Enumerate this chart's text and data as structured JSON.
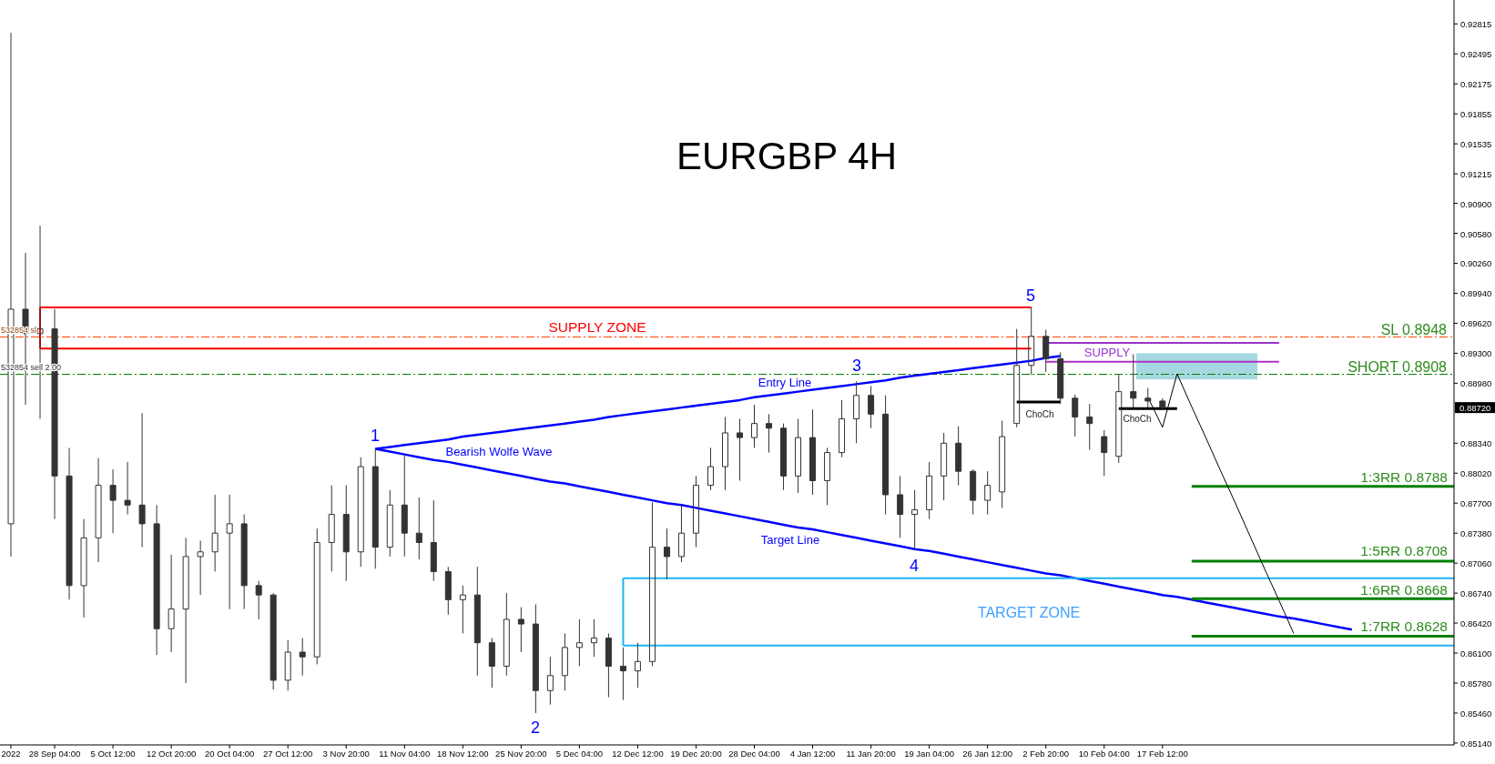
{
  "chart_data": {
    "type": "candlestick",
    "title": "EURGBP 4H",
    "color": "#333333",
    "categories": [
      "2022",
      null,
      null,
      "28 Sep 04:00",
      null,
      null,
      null,
      "5 Oct 12:00",
      null,
      null,
      null,
      "12 Oct 20:00",
      null,
      null,
      null,
      "20 Oct 04:00",
      null,
      null,
      null,
      "27 Oct 12:00",
      null,
      null,
      null,
      "3 Nov 20:00",
      null,
      null,
      null,
      "11 Nov 04:00",
      null,
      null,
      null,
      "18 Nov 12:00",
      null,
      null,
      null,
      "25 Nov 20:00",
      null,
      null,
      null,
      "5 Dec 04:00",
      null,
      null,
      null,
      "12 Dec 12:00",
      null,
      null,
      null,
      "19 Dec 20:00",
      null,
      null,
      null,
      "28 Dec 04:00",
      null,
      null,
      null,
      "4 Jan 12:00",
      null,
      null,
      null,
      "11 Jan 20:00",
      null,
      null,
      null,
      "19 Jan 04:00",
      null,
      null,
      null,
      "26 Jan 12:00",
      null,
      null,
      null,
      "2 Feb 20:00",
      null,
      null,
      null,
      "10 Feb 04:00",
      null,
      null,
      null,
      "17 Feb 12:00",
      null,
      null,
      null,
      null,
      null,
      null,
      null,
      null,
      null,
      null,
      null,
      null,
      null,
      null,
      null,
      null,
      null,
      null,
      null,
      null
    ],
    "ohlc": [
      [
        0.8748,
        0.9272,
        0.8713,
        0.8977
      ],
      [
        0.8977,
        0.9037,
        0.8875,
        0.8951
      ],
      [
        0.8951,
        0.9066,
        0.886,
        0.8956
      ],
      [
        0.8956,
        0.8977,
        0.8753,
        0.8799
      ],
      [
        0.8799,
        0.8829,
        0.8667,
        0.8682
      ],
      [
        0.8682,
        0.8753,
        0.8648,
        0.8733
      ],
      [
        0.8733,
        0.8818,
        0.8707,
        0.8789
      ],
      [
        0.8789,
        0.8806,
        0.8738,
        0.8773
      ],
      [
        0.8773,
        0.8814,
        0.8758,
        0.8768
      ],
      [
        0.8768,
        0.8866,
        0.8723,
        0.8748
      ],
      [
        0.8748,
        0.8768,
        0.8608,
        0.8636
      ],
      [
        0.8636,
        0.8715,
        0.8611,
        0.8657
      ],
      [
        0.8657,
        0.8733,
        0.8578,
        0.8713
      ],
      [
        0.8713,
        0.873,
        0.8672,
        0.8718
      ],
      [
        0.8718,
        0.8779,
        0.8697,
        0.8738
      ],
      [
        0.8738,
        0.8779,
        0.8657,
        0.8748
      ],
      [
        0.8748,
        0.8758,
        0.8657,
        0.8682
      ],
      [
        0.8682,
        0.8687,
        0.8646,
        0.8672
      ],
      [
        0.8672,
        0.8674,
        0.8571,
        0.8581
      ],
      [
        0.8581,
        0.8624,
        0.857,
        0.8611
      ],
      [
        0.8611,
        0.8626,
        0.8586,
        0.8606
      ],
      [
        0.8606,
        0.8743,
        0.8598,
        0.8728
      ],
      [
        0.8728,
        0.8789,
        0.8697,
        0.8758
      ],
      [
        0.8758,
        0.8789,
        0.8687,
        0.8718
      ],
      [
        0.8718,
        0.8819,
        0.8702,
        0.8809
      ],
      [
        0.8809,
        0.8828,
        0.87,
        0.8723
      ],
      [
        0.8723,
        0.8784,
        0.8713,
        0.8768
      ],
      [
        0.8768,
        0.8822,
        0.8713,
        0.8738
      ],
      [
        0.8738,
        0.8776,
        0.871,
        0.8728
      ],
      [
        0.8728,
        0.8773,
        0.8687,
        0.8697
      ],
      [
        0.8697,
        0.8702,
        0.8651,
        0.8667
      ],
      [
        0.8667,
        0.8682,
        0.8631,
        0.8672
      ],
      [
        0.8672,
        0.8702,
        0.8586,
        0.8621
      ],
      [
        0.8621,
        0.8626,
        0.8573,
        0.8596
      ],
      [
        0.8596,
        0.8674,
        0.8586,
        0.8646
      ],
      [
        0.8646,
        0.8659,
        0.8611,
        0.8641
      ],
      [
        0.8641,
        0.8662,
        0.8546,
        0.857
      ],
      [
        0.857,
        0.8606,
        0.8555,
        0.8586
      ],
      [
        0.8586,
        0.8631,
        0.857,
        0.8616
      ],
      [
        0.8616,
        0.8646,
        0.8596,
        0.8621
      ],
      [
        0.8621,
        0.8646,
        0.8606,
        0.8626
      ],
      [
        0.8626,
        0.8631,
        0.8563,
        0.8596
      ],
      [
        0.8596,
        0.8616,
        0.856,
        0.8591
      ],
      [
        0.8591,
        0.8621,
        0.8573,
        0.8601
      ],
      [
        0.8601,
        0.8771,
        0.8596,
        0.8723
      ],
      [
        0.8723,
        0.8743,
        0.8689,
        0.8713
      ],
      [
        0.8713,
        0.8768,
        0.8707,
        0.8738
      ],
      [
        0.8738,
        0.8799,
        0.8723,
        0.8789
      ],
      [
        0.8789,
        0.8829,
        0.8784,
        0.8809
      ],
      [
        0.8809,
        0.8862,
        0.8784,
        0.8845
      ],
      [
        0.8845,
        0.886,
        0.8794,
        0.884
      ],
      [
        0.884,
        0.8875,
        0.8829,
        0.8855
      ],
      [
        0.8855,
        0.8865,
        0.8824,
        0.885
      ],
      [
        0.885,
        0.8855,
        0.8784,
        0.8799
      ],
      [
        0.8799,
        0.886,
        0.8781,
        0.884
      ],
      [
        0.884,
        0.887,
        0.8779,
        0.8794
      ],
      [
        0.8794,
        0.8829,
        0.8768,
        0.8824
      ],
      [
        0.8824,
        0.888,
        0.8819,
        0.886
      ],
      [
        0.886,
        0.89,
        0.8834,
        0.8885
      ],
      [
        0.8885,
        0.8895,
        0.885,
        0.8865
      ],
      [
        0.8865,
        0.8885,
        0.8758,
        0.8779
      ],
      [
        0.8779,
        0.8799,
        0.8733,
        0.8758
      ],
      [
        0.8758,
        0.8784,
        0.872,
        0.8763
      ],
      [
        0.8763,
        0.8814,
        0.8753,
        0.8799
      ],
      [
        0.8799,
        0.8845,
        0.8773,
        0.8834
      ],
      [
        0.8834,
        0.8852,
        0.8789,
        0.8804
      ],
      [
        0.8804,
        0.8806,
        0.8758,
        0.8773
      ],
      [
        0.8773,
        0.8804,
        0.8758,
        0.8789
      ],
      [
        0.8782,
        0.8858,
        0.8765,
        0.8841
      ],
      [
        0.8855,
        0.8956,
        0.8851,
        0.8917
      ],
      [
        0.8917,
        0.8979,
        0.8907,
        0.8948
      ],
      [
        0.8948,
        0.8955,
        0.891,
        0.8924
      ],
      [
        0.8924,
        0.8931,
        0.8876,
        0.8882
      ],
      [
        0.8882,
        0.8886,
        0.8841,
        0.8862
      ],
      [
        0.8862,
        0.8876,
        0.8827,
        0.8855
      ],
      [
        0.8841,
        0.8848,
        0.8799,
        0.8824
      ],
      [
        0.882,
        0.8907,
        0.8813,
        0.8889
      ],
      [
        0.8889,
        0.8929,
        0.8872,
        0.8882
      ],
      [
        0.8882,
        0.8893,
        0.8872,
        0.8879
      ],
      [
        0.8879,
        0.8882,
        0.8869,
        0.8872
      ],
      null,
      null,
      null,
      null,
      null,
      null,
      null,
      null,
      null,
      null,
      null,
      null,
      null,
      null,
      null,
      null,
      null,
      null,
      null,
      null
    ],
    "series": [
      {
        "type": "line",
        "color": "#0000ff",
        "values": [
          null,
          null,
          null,
          null,
          null,
          null,
          null,
          null,
          null,
          null,
          null,
          null,
          null,
          null,
          null,
          null,
          null,
          null,
          null,
          null,
          null,
          null,
          null,
          null,
          null,
          0.8828,
          0.883,
          0.8832,
          0.8834,
          0.8836,
          0.8838,
          0.8841,
          0.8843,
          0.8845,
          0.8847,
          0.8849,
          0.8851,
          0.8853,
          0.8855,
          0.8857,
          0.8859,
          0.8862,
          0.8864,
          0.8866,
          0.8868,
          0.887,
          0.8872,
          0.8874,
          0.8876,
          0.8878,
          0.888,
          0.8883,
          0.8885,
          0.8887,
          0.8889,
          0.8891,
          0.8893,
          0.8895,
          0.8897,
          0.8899,
          0.8901,
          0.8904,
          0.8906,
          0.8908,
          0.891,
          0.8912,
          0.8914,
          0.8916,
          0.8918,
          0.892,
          0.8922,
          0.8925,
          0.8927,
          null,
          null,
          null,
          null,
          null,
          null,
          null,
          null,
          null,
          null,
          null,
          null,
          null,
          null,
          null,
          null,
          null,
          null,
          null,
          null,
          null,
          null,
          null,
          null,
          null,
          null,
          null
        ]
      },
      {
        "type": "line",
        "color": "#0000ff",
        "values": [
          null,
          null,
          null,
          null,
          null,
          null,
          null,
          null,
          null,
          null,
          null,
          null,
          null,
          null,
          null,
          null,
          null,
          null,
          null,
          null,
          null,
          null,
          null,
          null,
          null,
          0.8828,
          0.8825,
          0.8822,
          0.8819,
          0.8816,
          0.8814,
          0.8811,
          0.8808,
          0.8805,
          0.8802,
          0.8799,
          0.8796,
          0.8793,
          0.8791,
          0.8788,
          0.8785,
          0.8782,
          0.8779,
          0.8776,
          0.8773,
          0.877,
          0.8768,
          0.8765,
          0.8762,
          0.8759,
          0.8756,
          0.8753,
          0.875,
          0.8747,
          0.8744,
          0.8742,
          0.8739,
          0.8736,
          0.8733,
          0.873,
          0.8727,
          0.8724,
          0.8721,
          0.8719,
          0.8716,
          0.8713,
          0.871,
          0.8707,
          0.8704,
          0.8701,
          0.8698,
          0.8695,
          0.8693,
          0.869,
          0.8687,
          0.8684,
          0.8681,
          0.8678,
          0.8675,
          0.8672,
          0.867,
          0.8667,
          0.8664,
          0.8661,
          0.8658,
          0.8655,
          0.8652,
          0.8649,
          0.8647,
          0.8644,
          0.8641,
          0.8638,
          0.8635,
          null,
          null,
          null,
          null,
          null,
          null,
          null
        ]
      },
      {
        "type": "line",
        "color": "#ff0000",
        "values": [
          null,
          null,
          0.8979,
          0.8979,
          0.8979,
          0.8979,
          0.8979,
          0.8979,
          0.8979,
          0.8979,
          0.8979,
          0.8979,
          0.8979,
          0.8979,
          0.8979,
          0.8979,
          0.8979,
          0.8979,
          0.8979,
          0.8979,
          0.8979,
          0.8979,
          0.8979,
          0.8979,
          0.8979,
          0.8979,
          0.8979,
          0.8979,
          0.8979,
          0.8979,
          0.8979,
          0.8979,
          0.8979,
          0.8979,
          0.8979,
          0.8979,
          0.8979,
          0.8979,
          0.8979,
          0.8979,
          0.8979,
          0.8979,
          0.8979,
          0.8979,
          0.8979,
          0.8979,
          0.8979,
          0.8979,
          0.8979,
          0.8979,
          0.8979,
          0.8979,
          0.8979,
          0.8979,
          0.8979,
          0.8979,
          0.8979,
          0.8979,
          0.8979,
          0.8979,
          0.8979,
          0.8979,
          0.8979,
          0.8979,
          0.8979,
          0.8979,
          0.8979,
          0.8979,
          0.8979,
          0.8979,
          0.8979,
          null,
          null,
          null,
          null,
          null,
          null,
          null,
          null,
          null,
          null,
          null,
          null,
          null,
          null,
          null,
          null,
          null,
          null,
          null,
          null,
          null,
          null,
          null,
          null,
          null,
          null,
          null,
          null,
          null
        ]
      },
      {
        "type": "line",
        "color": "#ff0000",
        "values": [
          null,
          null,
          0.8935,
          0.8935,
          0.8935,
          0.8935,
          0.8935,
          0.8935,
          0.8935,
          0.8935,
          0.8935,
          0.8935,
          0.8935,
          0.8935,
          0.8935,
          0.8935,
          0.8935,
          0.8935,
          0.8935,
          0.8935,
          0.8935,
          0.8935,
          0.8935,
          0.8935,
          0.8935,
          0.8935,
          0.8935,
          0.8935,
          0.8935,
          0.8935,
          0.8935,
          0.8935,
          0.8935,
          0.8935,
          0.8935,
          0.8935,
          0.8935,
          0.8935,
          0.8935,
          0.8935,
          0.8935,
          0.8935,
          0.8935,
          0.8935,
          0.8935,
          0.8935,
          0.8935,
          0.8935,
          0.8935,
          0.8935,
          0.8935,
          0.8935,
          0.8935,
          0.8935,
          0.8935,
          0.8935,
          0.8935,
          0.8935,
          0.8935,
          0.8935,
          0.8935,
          0.8935,
          0.8935,
          0.8935,
          0.8935,
          0.8935,
          0.8935,
          0.8935,
          0.8935,
          0.8935,
          0.8935,
          null,
          null,
          null,
          null,
          null,
          null,
          null,
          null,
          null,
          null,
          null,
          null,
          null,
          null,
          null,
          null,
          null,
          null,
          null,
          null,
          null,
          null,
          null,
          null,
          null,
          null,
          null,
          null,
          null
        ]
      },
      {
        "type": "line",
        "color": "#1eb4f0",
        "values": [
          null,
          null,
          null,
          null,
          null,
          null,
          null,
          null,
          null,
          null,
          null,
          null,
          null,
          null,
          null,
          null,
          null,
          null,
          null,
          null,
          null,
          null,
          null,
          null,
          null,
          null,
          null,
          null,
          null,
          null,
          null,
          null,
          null,
          null,
          null,
          null,
          null,
          null,
          null,
          null,
          null,
          null,
          0.869,
          0.869,
          0.869,
          0.869,
          0.869,
          0.869,
          0.869,
          0.869,
          0.869,
          0.869,
          0.869,
          0.869,
          0.869,
          0.869,
          0.869,
          0.869,
          0.869,
          0.869,
          0.869,
          0.869,
          0.869,
          0.869,
          0.869,
          0.869,
          0.869,
          0.869,
          0.869,
          0.869,
          0.869,
          0.869,
          0.869,
          0.869,
          0.869,
          0.869,
          0.869,
          0.869,
          0.869,
          0.869,
          0.869,
          0.869,
          0.869,
          0.869,
          0.869,
          0.869,
          0.869,
          0.869,
          0.869,
          0.869,
          0.869,
          0.869,
          0.869,
          0.869,
          0.869,
          0.869,
          0.869,
          0.869,
          0.869,
          0.869
        ]
      },
      {
        "type": "line",
        "color": "#1eb4f0",
        "values": [
          null,
          null,
          null,
          null,
          null,
          null,
          null,
          null,
          null,
          null,
          null,
          null,
          null,
          null,
          null,
          null,
          null,
          null,
          null,
          null,
          null,
          null,
          null,
          null,
          null,
          null,
          null,
          null,
          null,
          null,
          null,
          null,
          null,
          null,
          null,
          null,
          null,
          null,
          null,
          null,
          null,
          null,
          0.8618,
          0.8618,
          0.8618,
          0.8618,
          0.8618,
          0.8618,
          0.8618,
          0.8618,
          0.8618,
          0.8618,
          0.8618,
          0.8618,
          0.8618,
          0.8618,
          0.8618,
          0.8618,
          0.8618,
          0.8618,
          0.8618,
          0.8618,
          0.8618,
          0.8618,
          0.8618,
          0.8618,
          0.8618,
          0.8618,
          0.8618,
          0.8618,
          0.8618,
          0.8618,
          0.8618,
          0.8618,
          0.8618,
          0.8618,
          0.8618,
          0.8618,
          0.8618,
          0.8618,
          0.8618,
          0.8618,
          0.8618,
          0.8618,
          0.8618,
          0.8618,
          0.8618,
          0.8618,
          0.8618,
          0.8618,
          0.8618,
          0.8618,
          0.8618,
          0.8618,
          0.8618,
          0.8618,
          0.8618,
          0.8618,
          0.8618,
          0.8618
        ]
      },
      {
        "type": "line",
        "color": "#9933cc",
        "values": [
          null,
          null,
          null,
          null,
          null,
          null,
          null,
          null,
          null,
          null,
          null,
          null,
          null,
          null,
          null,
          null,
          null,
          null,
          null,
          null,
          null,
          null,
          null,
          null,
          null,
          null,
          null,
          null,
          null,
          null,
          null,
          null,
          null,
          null,
          null,
          null,
          null,
          null,
          null,
          null,
          null,
          null,
          null,
          null,
          null,
          null,
          null,
          null,
          null,
          null,
          null,
          null,
          null,
          null,
          null,
          null,
          null,
          null,
          null,
          null,
          null,
          null,
          null,
          null,
          null,
          null,
          null,
          null,
          null,
          null,
          null,
          0.8941,
          0.8941,
          0.8941,
          0.8941,
          0.8941,
          0.8941,
          0.8941,
          0.8941,
          0.8941,
          0.8941,
          0.8941,
          0.8941,
          0.8941,
          0.8941,
          0.8941,
          0.8941,
          0.8941,
          null,
          null,
          null,
          null,
          null,
          null,
          null,
          null,
          null,
          null,
          null,
          null
        ]
      },
      {
        "type": "line",
        "color": "#b030c8",
        "values": [
          null,
          null,
          null,
          null,
          null,
          null,
          null,
          null,
          null,
          null,
          null,
          null,
          null,
          null,
          null,
          null,
          null,
          null,
          null,
          null,
          null,
          null,
          null,
          null,
          null,
          null,
          null,
          null,
          null,
          null,
          null,
          null,
          null,
          null,
          null,
          null,
          null,
          null,
          null,
          null,
          null,
          null,
          null,
          null,
          null,
          null,
          null,
          null,
          null,
          null,
          null,
          null,
          null,
          null,
          null,
          null,
          null,
          null,
          null,
          null,
          null,
          null,
          null,
          null,
          null,
          null,
          null,
          null,
          null,
          null,
          null,
          0.8921,
          0.8921,
          0.8921,
          0.8921,
          0.8921,
          0.8921,
          0.8921,
          0.8921,
          0.8921,
          0.8921,
          0.8921,
          0.8921,
          0.8921,
          0.8921,
          0.8921,
          0.8921,
          0.8921,
          null,
          null,
          null,
          null,
          null,
          null,
          null,
          null,
          null,
          null,
          null,
          null
        ]
      },
      {
        "type": "line",
        "color": "#000000",
        "values": [
          null,
          null,
          null,
          null,
          null,
          null,
          null,
          null,
          null,
          null,
          null,
          null,
          null,
          null,
          null,
          null,
          null,
          null,
          null,
          null,
          null,
          null,
          null,
          null,
          null,
          null,
          null,
          null,
          null,
          null,
          null,
          null,
          null,
          null,
          null,
          null,
          null,
          null,
          null,
          null,
          null,
          null,
          null,
          null,
          null,
          null,
          null,
          null,
          null,
          null,
          null,
          null,
          null,
          null,
          null,
          null,
          null,
          null,
          null,
          null,
          null,
          null,
          null,
          null,
          null,
          null,
          null,
          null,
          null,
          0.8878,
          0.8878,
          0.8878,
          0.8878,
          null,
          null,
          null,
          null,
          null,
          null,
          null,
          null,
          null,
          null,
          null,
          null,
          null,
          null,
          null,
          null,
          null,
          null,
          null,
          null,
          null,
          null,
          null,
          null,
          null,
          null,
          null
        ]
      },
      {
        "type": "line",
        "color": "#000000",
        "values": [
          null,
          null,
          null,
          null,
          null,
          null,
          null,
          null,
          null,
          null,
          null,
          null,
          null,
          null,
          null,
          null,
          null,
          null,
          null,
          null,
          null,
          null,
          null,
          null,
          null,
          null,
          null,
          null,
          null,
          null,
          null,
          null,
          null,
          null,
          null,
          null,
          null,
          null,
          null,
          null,
          null,
          null,
          null,
          null,
          null,
          null,
          null,
          null,
          null,
          null,
          null,
          null,
          null,
          null,
          null,
          null,
          null,
          null,
          null,
          null,
          null,
          null,
          null,
          null,
          null,
          null,
          null,
          null,
          null,
          null,
          null,
          null,
          null,
          null,
          null,
          null,
          0.8871,
          0.8871,
          0.8871,
          0.8871,
          0.8871,
          null,
          null,
          null,
          null,
          null,
          null,
          null,
          null,
          null,
          null,
          null,
          null,
          null,
          null,
          null,
          null,
          null,
          null,
          null
        ]
      },
      {
        "type": "line",
        "color": "#008000",
        "values": [
          null,
          null,
          null,
          null,
          null,
          null,
          null,
          null,
          null,
          null,
          null,
          null,
          null,
          null,
          null,
          null,
          null,
          null,
          null,
          null,
          null,
          null,
          null,
          null,
          null,
          null,
          null,
          null,
          null,
          null,
          null,
          null,
          null,
          null,
          null,
          null,
          null,
          null,
          null,
          null,
          null,
          null,
          null,
          null,
          null,
          null,
          null,
          null,
          null,
          null,
          null,
          null,
          null,
          null,
          null,
          null,
          null,
          null,
          null,
          null,
          null,
          null,
          null,
          null,
          null,
          null,
          null,
          null,
          null,
          null,
          null,
          null,
          null,
          null,
          null,
          null,
          null,
          null,
          null,
          null,
          null,
          0.8788,
          0.8788,
          0.8788,
          0.8788,
          0.8788,
          0.8788,
          0.8788,
          0.8788,
          0.8788,
          0.8788,
          0.8788,
          0.8788,
          0.8788,
          0.8788,
          0.8788,
          0.8788,
          0.8788,
          0.8788,
          0.8788
        ]
      },
      {
        "type": "line",
        "color": "#008000",
        "values": [
          null,
          null,
          null,
          null,
          null,
          null,
          null,
          null,
          null,
          null,
          null,
          null,
          null,
          null,
          null,
          null,
          null,
          null,
          null,
          null,
          null,
          null,
          null,
          null,
          null,
          null,
          null,
          null,
          null,
          null,
          null,
          null,
          null,
          null,
          null,
          null,
          null,
          null,
          null,
          null,
          null,
          null,
          null,
          null,
          null,
          null,
          null,
          null,
          null,
          null,
          null,
          null,
          null,
          null,
          null,
          null,
          null,
          null,
          null,
          null,
          null,
          null,
          null,
          null,
          null,
          null,
          null,
          null,
          null,
          null,
          null,
          null,
          null,
          null,
          null,
          null,
          null,
          null,
          null,
          null,
          null,
          0.8708,
          0.8708,
          0.8708,
          0.8708,
          0.8708,
          0.8708,
          0.8708,
          0.8708,
          0.8708,
          0.8708,
          0.8708,
          0.8708,
          0.8708,
          0.8708,
          0.8708,
          0.8708,
          0.8708,
          0.8708,
          0.8708
        ]
      },
      {
        "type": "line",
        "color": "#008000",
        "values": [
          null,
          null,
          null,
          null,
          null,
          null,
          null,
          null,
          null,
          null,
          null,
          null,
          null,
          null,
          null,
          null,
          null,
          null,
          null,
          null,
          null,
          null,
          null,
          null,
          null,
          null,
          null,
          null,
          null,
          null,
          null,
          null,
          null,
          null,
          null,
          null,
          null,
          null,
          null,
          null,
          null,
          null,
          null,
          null,
          null,
          null,
          null,
          null,
          null,
          null,
          null,
          null,
          null,
          null,
          null,
          null,
          null,
          null,
          null,
          null,
          null,
          null,
          null,
          null,
          null,
          null,
          null,
          null,
          null,
          null,
          null,
          null,
          null,
          null,
          null,
          null,
          null,
          null,
          null,
          null,
          null,
          0.8668,
          0.8668,
          0.8668,
          0.8668,
          0.8668,
          0.8668,
          0.8668,
          0.8668,
          0.8668,
          0.8668,
          0.8668,
          0.8668,
          0.8668,
          0.8668,
          0.8668,
          0.8668,
          0.8668,
          0.8668,
          0.8668
        ]
      },
      {
        "type": "line",
        "color": "#008000",
        "values": [
          null,
          null,
          null,
          null,
          null,
          null,
          null,
          null,
          null,
          null,
          null,
          null,
          null,
          null,
          null,
          null,
          null,
          null,
          null,
          null,
          null,
          null,
          null,
          null,
          null,
          null,
          null,
          null,
          null,
          null,
          null,
          null,
          null,
          null,
          null,
          null,
          null,
          null,
          null,
          null,
          null,
          null,
          null,
          null,
          null,
          null,
          null,
          null,
          null,
          null,
          null,
          null,
          null,
          null,
          null,
          null,
          null,
          null,
          null,
          null,
          null,
          null,
          null,
          null,
          null,
          null,
          null,
          null,
          null,
          null,
          null,
          null,
          null,
          null,
          null,
          null,
          null,
          null,
          null,
          null,
          null,
          0.8628,
          0.8628,
          0.8628,
          0.8628,
          0.8628,
          0.8628,
          0.8628,
          0.8628,
          0.8628,
          0.8628,
          0.8628,
          0.8628,
          0.8628,
          0.8628,
          0.8628,
          0.8628,
          0.8628,
          0.8628,
          0.8628
        ]
      },
      {
        "type": "line",
        "color": "#000000",
        "values": [
          null,
          null,
          null,
          null,
          null,
          null,
          null,
          null,
          null,
          null,
          null,
          null,
          null,
          null,
          null,
          null,
          null,
          null,
          null,
          null,
          null,
          null,
          null,
          null,
          null,
          null,
          null,
          null,
          null,
          null,
          null,
          null,
          null,
          null,
          null,
          null,
          null,
          null,
          null,
          null,
          null,
          null,
          null,
          null,
          null,
          null,
          null,
          null,
          null,
          null,
          null,
          null,
          null,
          null,
          null,
          null,
          null,
          null,
          null,
          null,
          null,
          null,
          null,
          null,
          null,
          null,
          null,
          null,
          null,
          null,
          null,
          null,
          null,
          null,
          null,
          null,
          null,
          null,
          0.8883,
          0.8851,
          0.8908,
          0.8873,
          0.8839,
          0.8804,
          0.877,
          0.8735,
          0.87,
          0.8666,
          0.8631,
          null,
          null,
          null,
          null,
          null,
          null,
          null,
          null,
          null,
          null,
          null
        ]
      }
    ],
    "bands": [
      {
        "axis": "y",
        "from": 0.8902,
        "to": 0.893,
        "color": "#a6d8e1"
      }
    ],
    "ref_lines": [
      {
        "axis": "y",
        "value": 0.8948,
        "label": "SL 0.8948",
        "color": "#ff4500",
        "line_style": "dashed"
      },
      {
        "axis": "y",
        "value": 0.8908,
        "label": "SHORT 0.8908",
        "color": "#008000",
        "line_style": "dashed"
      }
    ],
    "annotations": [
      "1",
      "2",
      "3",
      "4",
      "5",
      "Bearish Wolfe Wave",
      "Entry Line",
      "Target Line",
      "SUPPLY ZONE",
      "TARGET ZONE",
      "SUPPLY",
      "ChoCh",
      "ChoCh",
      "1:3RR 0.8788",
      "1:5RR 0.8708",
      "1:6RR 0.8668",
      "1:7RR 0.8628",
      "532854 sl",
      "532854 sell 2.00",
      "0.88720"
    ],
    "ylim": [
      0.8512,
      0.9307
    ],
    "yticks": [
      0.92815,
      0.92495,
      0.92175,
      0.91855,
      0.91535,
      0.91215,
      {
        "value": 0.909,
        "label": "0.90900"
      },
      {
        "value": 0.9058,
        "label": "0.90580"
      },
      {
        "value": 0.9026,
        "label": "0.90260"
      },
      {
        "value": 0.8994,
        "label": "0.89940"
      },
      {
        "value": 0.8962,
        "label": "0.89620"
      },
      {
        "value": 0.893,
        "label": "0.89300"
      },
      {
        "value": 0.8898,
        "label": "0.88980"
      },
      {
        "value": 0.8834,
        "label": "0.88340"
      },
      {
        "value": 0.8802,
        "label": "0.88020"
      },
      {
        "value": 0.877,
        "label": "0.87700"
      },
      {
        "value": 0.8738,
        "label": "0.87380"
      },
      {
        "value": 0.8706,
        "label": "0.87060"
      },
      {
        "value": 0.8674,
        "label": "0.86740"
      },
      {
        "value": 0.8642,
        "label": "0.86420"
      },
      {
        "value": 0.861,
        "label": "0.86100"
      },
      {
        "value": 0.8578,
        "label": "0.85780"
      },
      {
        "value": 0.8546,
        "label": "0.85460"
      },
      {
        "value": 0.8514,
        "label": "0.85140"
      }
    ]
  }
}
